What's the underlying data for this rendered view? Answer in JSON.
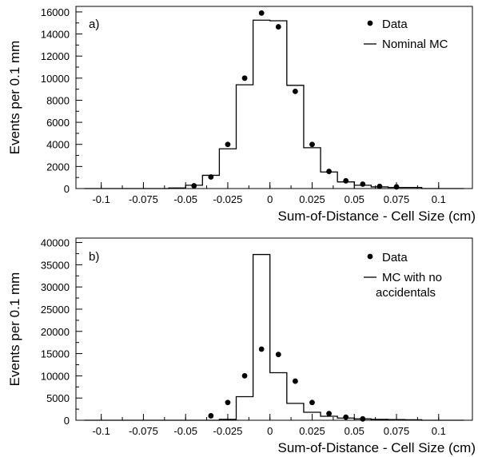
{
  "chart_data": [
    {
      "type": "scatter",
      "panel_label": "a)",
      "xlabel": "Sum-of-Distance - Cell Size (cm)",
      "ylabel": "Events per 0.1 mm",
      "xlim": [
        -0.115,
        0.12
      ],
      "ylim": [
        0,
        16500
      ],
      "xticks": [
        -0.1,
        -0.075,
        -0.05,
        -0.025,
        0,
        0.025,
        0.05,
        0.075,
        0.1
      ],
      "xtick_labels": [
        "-0.1",
        "-0.075",
        "-0.05",
        "-0.025",
        "0",
        "0.025",
        "0.05",
        "0.075",
        "0.1"
      ],
      "yticks": [
        0,
        2000,
        4000,
        6000,
        8000,
        10000,
        12000,
        14000,
        16000
      ],
      "ytick_labels": [
        "0",
        "2000",
        "4000",
        "6000",
        "8000",
        "10000",
        "12000",
        "14000",
        "16000"
      ],
      "legend_position": "top-right",
      "series": [
        {
          "name": "Data",
          "style": "points",
          "x": [
            -0.045,
            -0.035,
            -0.025,
            -0.015,
            -0.005,
            0.005,
            0.015,
            0.025,
            0.035,
            0.045,
            0.055,
            0.065,
            0.075
          ],
          "y": [
            250,
            1050,
            4000,
            10000,
            15900,
            14650,
            8800,
            4000,
            1550,
            700,
            400,
            200,
            150
          ]
        },
        {
          "name": "Nominal MC",
          "style": "histogram",
          "bin_edges": [
            -0.11,
            -0.06,
            -0.05,
            -0.04,
            -0.03,
            -0.02,
            -0.01,
            0.0,
            0.01,
            0.02,
            0.03,
            0.04,
            0.05,
            0.06,
            0.07,
            0.08,
            0.09,
            0.115
          ],
          "counts": [
            0,
            50,
            300,
            1200,
            3600,
            9400,
            15250,
            15200,
            9350,
            3700,
            1500,
            600,
            300,
            150,
            100,
            100,
            0
          ]
        }
      ]
    },
    {
      "type": "scatter",
      "panel_label": "b)",
      "xlabel": "Sum-of-Distance - Cell Size (cm)",
      "ylabel": "Events per 0.1 mm",
      "xlim": [
        -0.115,
        0.12
      ],
      "ylim": [
        0,
        41000
      ],
      "xticks": [
        -0.1,
        -0.075,
        -0.05,
        -0.025,
        0,
        0.025,
        0.05,
        0.075,
        0.1
      ],
      "xtick_labels": [
        "-0.1",
        "-0.075",
        "-0.05",
        "-0.025",
        "0",
        "0.025",
        "0.05",
        "0.075",
        "0.1"
      ],
      "yticks": [
        0,
        5000,
        10000,
        15000,
        20000,
        25000,
        30000,
        35000,
        40000
      ],
      "ytick_labels": [
        "0",
        "5000",
        "10000",
        "15000",
        "20000",
        "25000",
        "30000",
        "35000",
        "40000"
      ],
      "legend_position": "top-right",
      "series": [
        {
          "name": "Data",
          "style": "points",
          "x": [
            -0.035,
            -0.025,
            -0.015,
            -0.005,
            0.005,
            0.015,
            0.025,
            0.035,
            0.045,
            0.055
          ],
          "y": [
            1000,
            4000,
            10000,
            16000,
            14800,
            8800,
            4000,
            1500,
            700,
            300
          ]
        },
        {
          "name": "MC with no\naccidentals",
          "style": "histogram",
          "bin_edges": [
            -0.11,
            -0.03,
            -0.02,
            -0.01,
            0.0,
            0.01,
            0.02,
            0.03,
            0.04,
            0.05,
            0.06,
            0.07,
            0.08,
            0.09,
            0.115
          ],
          "counts": [
            0,
            200,
            5300,
            37300,
            10700,
            3800,
            1800,
            900,
            500,
            300,
            200,
            150,
            100,
            0
          ]
        }
      ]
    }
  ]
}
